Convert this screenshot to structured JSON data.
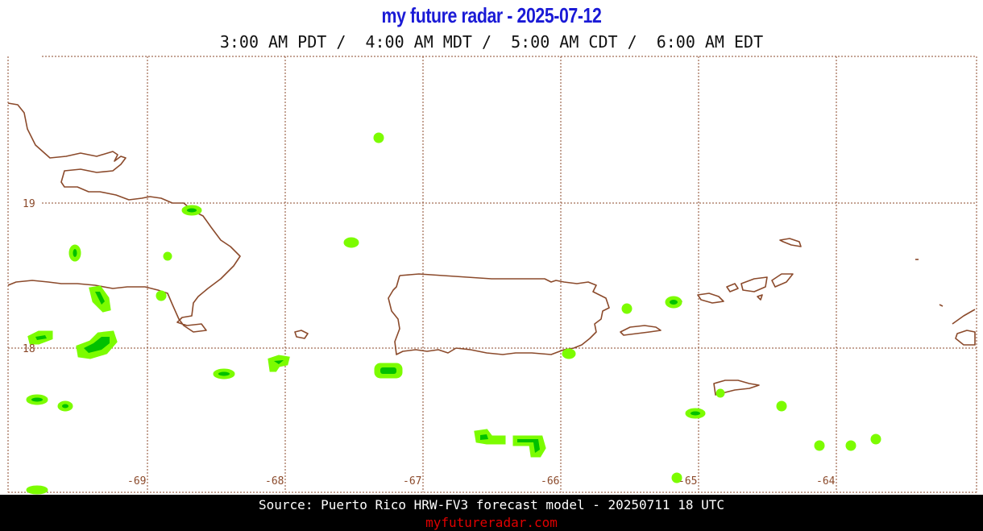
{
  "header": {
    "title": "my future radar - 2025-07-12",
    "times": "3:00 AM PDT /  4:00 AM MDT /  5:00 AM CDT /  6:00 AM EDT"
  },
  "map": {
    "lat_labels": [
      "19",
      "18"
    ],
    "lon_labels": [
      "-69",
      "-68",
      "-67",
      "-66",
      "-65",
      "-64"
    ],
    "colors": {
      "grid": "#8b4a2b",
      "coast": "#8b4a2b",
      "precip_light": "#7cfc00",
      "precip_heavy": "#00c800"
    }
  },
  "footer": {
    "source": "Source: Puerto Rico HRW-FV3 forecast model - 20250711 18 UTC",
    "site": "myfutureradar.com"
  }
}
